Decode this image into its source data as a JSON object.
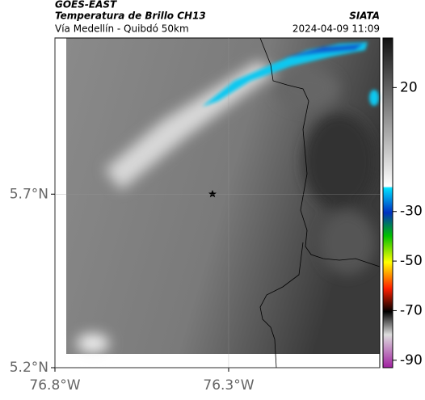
{
  "header": {
    "source": "GOES-EAST",
    "title": "Temperatura de Brillo CH13",
    "subtitle": "Vía Medellín - Quibdó 50km",
    "credit": "SIATA",
    "timestamp": "2024-04-09 11:09"
  },
  "map": {
    "xlim": [
      -76.8,
      -75.865
    ],
    "ylim": [
      5.2,
      6.15
    ],
    "xticks": [
      {
        "value": -76.8,
        "label": "76.8°W"
      },
      {
        "value": -76.3,
        "label": "76.3°W"
      }
    ],
    "yticks": [
      {
        "value": 5.7,
        "label": "5.7°N"
      },
      {
        "value": 5.2,
        "label": "5.2°N"
      }
    ]
  },
  "colorbar": {
    "lim": [
      -93,
      40
    ],
    "ticks": [
      20,
      -30,
      -50,
      -70,
      -90
    ]
  }
}
